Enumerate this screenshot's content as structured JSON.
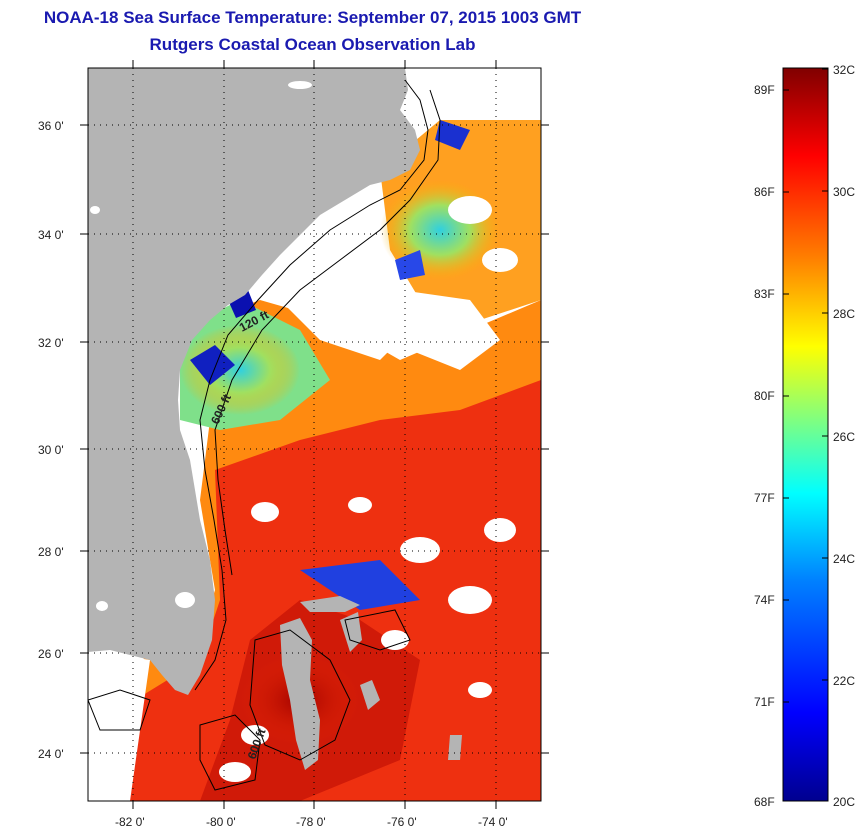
{
  "title": "NOAA-18 Sea Surface Temperature:  September 07, 2015 1003 GMT",
  "subtitle": "Rutgers Coastal Ocean Observation Lab",
  "map": {
    "lat_labels": [
      "36 0'",
      "34 0'",
      "32 0'",
      "30 0'",
      "28 0'",
      "26 0'",
      "24 0'"
    ],
    "lon_labels": [
      "-82 0'",
      "-80 0'",
      "-78 0'",
      "-76 0'",
      "-74 0'"
    ],
    "contour_labels": [
      "120 ft",
      "600 ft",
      "600 ft"
    ],
    "colors": {
      "land": "#b4b4b4",
      "no_data": "#ffffff"
    }
  },
  "colorbar": {
    "fahrenheit_labels": [
      "89F",
      "86F",
      "83F",
      "80F",
      "77F",
      "74F",
      "71F",
      "68F"
    ],
    "celsius_labels": [
      "32C",
      "30C",
      "28C",
      "26C",
      "24C",
      "22C",
      "20C"
    ],
    "scale_min_c": 20,
    "scale_max_c": 32,
    "colormap": [
      "#00008f",
      "#0000ff",
      "#0080ff",
      "#00ffff",
      "#80ff80",
      "#ffff00",
      "#ff8000",
      "#ff0000",
      "#800000"
    ]
  }
}
